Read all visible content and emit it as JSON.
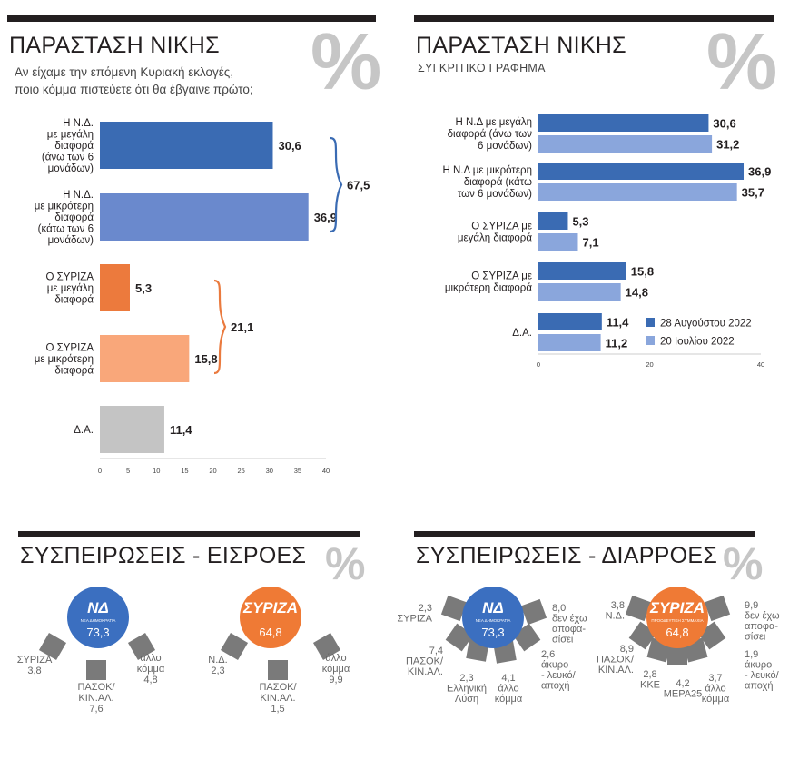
{
  "panel1": {
    "title": "ΠΑΡΑΣΤΑΣΗ ΝΙΚΗΣ",
    "percent_sign": "%",
    "subtitle": [
      "Αν είχαμε την επόμενη Κυριακή εκλογές,",
      "ποιο κόμμα πιστεύετε ότι θα έβγαινε πρώτο;"
    ],
    "bracket_colors": {
      "nd": "#3a6bb3",
      "syriza": "#ea7a3e"
    }
  },
  "panel2": {
    "title": "ΠΑΡΑΣΤΑΣΗ ΝΙΚΗΣ",
    "percent_sign": "%",
    "subtitle": "ΣΥΓΚΡΙΤΙΚΟ ΓΡΑΦΗΜΑ"
  },
  "panel3": {
    "title": "ΣΥΣΠΕΙΡΩΣΕΙΣ - ΕΙΣΡΟΕΣ",
    "percent_sign": "%",
    "nd_logo": {
      "text": "ΝΔ",
      "caption": "ΝΕΑ ΔΗΜΟΚΡΑΤΙΑ",
      "color": "#3b6fc0"
    },
    "syriza_logo": {
      "text": "ΣΥΡΙΖΑ",
      "color": "#ef7a35"
    }
  },
  "panel4": {
    "title": "ΣΥΣΠΕΙΡΩΣΕΙΣ - ΔΙΑΡΡΟΕΣ",
    "percent_sign": "%",
    "nd_logo": {
      "text": "ΝΔ",
      "caption": "ΝΕΑ ΔΗΜΟΚΡΑΤΙΑ",
      "color": "#3b6fc0"
    },
    "syriza_logo": {
      "text": "ΣΥΡΙΖΑ",
      "caption": "ΠΡΟΟΔΕΥΤΙΚΗ ΣΥΜΜΑΧΙΑ",
      "color": "#ef7a35"
    }
  },
  "chart_data": [
    {
      "type": "bar",
      "orientation": "horizontal",
      "title": "ΠΑΡΑΣΤΑΣΗ ΝΙΚΗΣ",
      "categories": [
        [
          "Η Ν.Δ.",
          "με μεγάλη",
          "διαφορά",
          "(άνω των 6",
          "μονάδων)"
        ],
        [
          "Η Ν.Δ.",
          "με μικρότερη",
          "διαφορά",
          "(κάτω των 6",
          "μονάδων)"
        ],
        [
          "Ο ΣΥΡΙΖΑ",
          "με μεγάλη",
          "διαφορά"
        ],
        [
          "Ο ΣΥΡΙΖΑ",
          "με μικρότερη",
          "διαφορά"
        ],
        [
          "Δ.Α."
        ]
      ],
      "values": [
        30.6,
        36.9,
        5.3,
        15.8,
        11.4
      ],
      "value_labels": [
        "30,6",
        "36,9",
        "5,3",
        "15,8",
        "11,4"
      ],
      "colors": [
        "#3a6bb3",
        "#6a89cd",
        "#ec7a3d",
        "#f9a77a",
        "#c4c4c4"
      ],
      "xlim": [
        0,
        40
      ],
      "xticks": [
        0,
        5,
        10,
        15,
        20,
        25,
        30,
        35,
        40
      ],
      "brackets": [
        {
          "label": "67,5",
          "value": 67.5,
          "group": [
            0,
            1
          ]
        },
        {
          "label": "21,1",
          "value": 21.1,
          "group": [
            2,
            3
          ]
        }
      ]
    },
    {
      "type": "bar",
      "orientation": "horizontal",
      "title": "ΠΑΡΑΣΤΑΣΗ ΝΙΚΗΣ",
      "subtitle": "ΣΥΓΚΡΙΤΙΚΟ ΓΡΑΦΗΜΑ",
      "categories": [
        [
          "Η Ν.Δ με μεγάλη",
          "διαφορά (άνω των",
          "6 μονάδων)"
        ],
        [
          "Η Ν.Δ με μικρότερη",
          "διαφορά (κάτω",
          "των 6 μονάδων)"
        ],
        [
          "Ο ΣΥΡΙΖΑ με",
          "μεγάλη διαφορά"
        ],
        [
          "Ο ΣΥΡΙΖΑ με",
          "μικρότερη διαφορά"
        ],
        [
          "Δ.Α."
        ]
      ],
      "series": [
        {
          "name": "28 Αυγούστου 2022",
          "values": [
            30.6,
            36.9,
            5.3,
            15.8,
            11.4
          ],
          "labels": [
            "30,6",
            "36,9",
            "5,3",
            "15,8",
            "11,4"
          ],
          "color": "#3a6bb3"
        },
        {
          "name": "20 Ιουλίου 2022",
          "values": [
            31.2,
            35.7,
            7.1,
            14.8,
            11.2
          ],
          "labels": [
            "31,2",
            "35,7",
            "7,1",
            "14,8",
            "11,2"
          ],
          "color": "#8aa6dc"
        }
      ],
      "xlim": [
        0,
        40
      ],
      "xticks": [
        0,
        20,
        40
      ],
      "legend": "bottom-right"
    },
    {
      "type": "diagram",
      "title": "ΣΥΣΠΕΙΡΩΣΕΙΣ - ΕΙΣΡΟΕΣ",
      "groups": [
        {
          "party": "Ν.Δ.",
          "center_value": 73.3,
          "center_label": "73,3",
          "inflows": [
            {
              "label": [
                "ΣΥΡΙΖΑ"
              ],
              "value": 3.8,
              "value_label": "3,8"
            },
            {
              "label": [
                "ΠΑΣΟΚ/",
                "ΚΙΝ.ΑΛ."
              ],
              "value": 7.6,
              "value_label": "7,6"
            },
            {
              "label": [
                "άλλο",
                "κόμμα"
              ],
              "value": 4.8,
              "value_label": "4,8"
            }
          ]
        },
        {
          "party": "ΣΥΡΙΖΑ",
          "center_value": 64.8,
          "center_label": "64,8",
          "inflows": [
            {
              "label": [
                "Ν.Δ."
              ],
              "value": 2.3,
              "value_label": "2,3"
            },
            {
              "label": [
                "ΠΑΣΟΚ/",
                "ΚΙΝ.ΑΛ."
              ],
              "value": 1.5,
              "value_label": "1,5"
            },
            {
              "label": [
                "άλλο",
                "κόμμα"
              ],
              "value": 9.9,
              "value_label": "9,9"
            }
          ]
        }
      ]
    },
    {
      "type": "diagram",
      "title": "ΣΥΣΠΕΙΡΩΣΕΙΣ - ΔΙΑΡΡΟΕΣ",
      "groups": [
        {
          "party": "Ν.Δ.",
          "center_value": 73.3,
          "center_label": "73,3",
          "outflows": [
            {
              "label": [
                "ΣΥΡΙΖΑ"
              ],
              "value": 2.3,
              "value_label": "2,3"
            },
            {
              "label": [
                "ΠΑΣΟΚ/",
                "ΚΙΝ.ΑΛ."
              ],
              "value": 7.4,
              "value_label": "7,4"
            },
            {
              "label": [
                "Ελληνική",
                "Λύση"
              ],
              "value": 2.3,
              "value_label": "2,3"
            },
            {
              "label": [
                "άλλο",
                "κόμμα"
              ],
              "value": 4.1,
              "value_label": "4,1"
            },
            {
              "label": [
                "άκυρο",
                "- λευκό/",
                "αποχή"
              ],
              "value": 2.6,
              "value_label": "2,6"
            },
            {
              "label": [
                "δεν έχω",
                "αποφα-",
                "σίσει"
              ],
              "value": 8.0,
              "value_label": "8,0"
            }
          ]
        },
        {
          "party": "ΣΥΡΙΖΑ",
          "center_value": 64.8,
          "center_label": "64,8",
          "outflows": [
            {
              "label": [
                "Ν.Δ."
              ],
              "value": 3.8,
              "value_label": "3,8"
            },
            {
              "label": [
                "ΠΑΣΟΚ/",
                "ΚΙΝ.ΑΛ."
              ],
              "value": 8.9,
              "value_label": "8,9"
            },
            {
              "label": [
                "ΚΚΕ"
              ],
              "value": 2.8,
              "value_label": "2,8"
            },
            {
              "label": [
                "ΜΕΡΑ25"
              ],
              "value": 4.2,
              "value_label": "4,2"
            },
            {
              "label": [
                "άλλο",
                "κόμμα"
              ],
              "value": 3.7,
              "value_label": "3,7"
            },
            {
              "label": [
                "άκυρο",
                "- λευκό/",
                "αποχή"
              ],
              "value": 1.9,
              "value_label": "1,9"
            },
            {
              "label": [
                "δεν έχω",
                "αποφα-",
                "σίσει"
              ],
              "value": 9.9,
              "value_label": "9,9"
            }
          ]
        }
      ]
    }
  ]
}
